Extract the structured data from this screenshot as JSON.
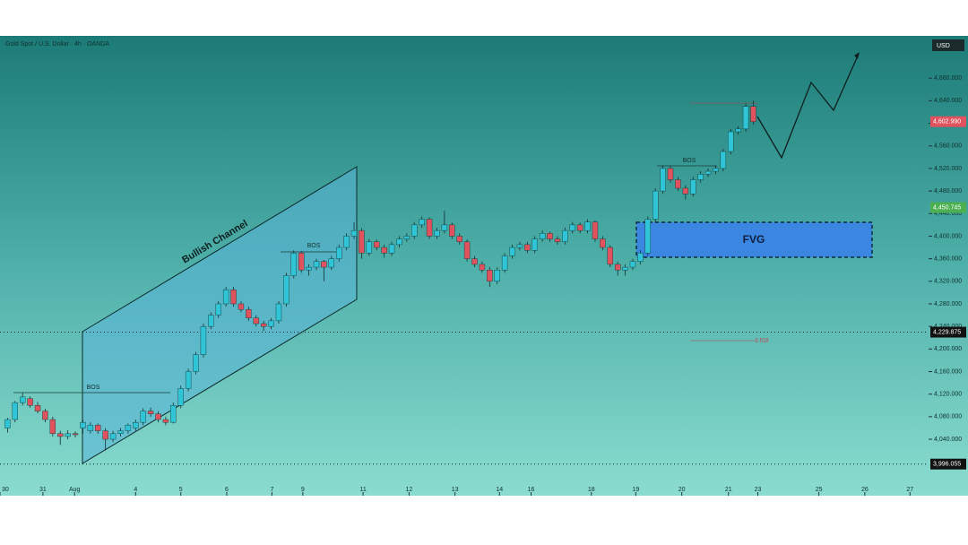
{
  "chart_data": {
    "type": "candlestick",
    "title": "Gold Spot / U.S. Dollar · 4h · OANDA",
    "currency": "USD",
    "up_color": "#2fc4d6",
    "down_color": "#e0525e",
    "candles": [
      [
        4060,
        4078,
        4052,
        4075
      ],
      [
        4075,
        4108,
        4070,
        4105
      ],
      [
        4105,
        4122,
        4100,
        4115
      ],
      [
        4112,
        4116,
        4096,
        4100
      ],
      [
        4100,
        4106,
        4086,
        4090
      ],
      [
        4090,
        4094,
        4070,
        4075
      ],
      [
        4075,
        4080,
        4045,
        4050
      ],
      [
        4050,
        4055,
        4030,
        4045
      ],
      [
        4045,
        4056,
        4040,
        4050
      ],
      [
        4050,
        4054,
        4043,
        4048
      ],
      [
        4060,
        4075,
        4050,
        4070
      ],
      [
        4055,
        4070,
        4050,
        4065
      ],
      [
        4065,
        4068,
        4050,
        4055
      ],
      [
        4055,
        4060,
        4020,
        4040
      ],
      [
        4040,
        4055,
        4035,
        4050
      ],
      [
        4050,
        4060,
        4045,
        4055
      ],
      [
        4055,
        4068,
        4050,
        4065
      ],
      [
        4060,
        4075,
        4055,
        4070
      ],
      [
        4070,
        4095,
        4065,
        4090
      ],
      [
        4090,
        4096,
        4080,
        4085
      ],
      [
        4085,
        4090,
        4070,
        4075
      ],
      [
        4075,
        4080,
        4065,
        4070
      ],
      [
        4070,
        4105,
        4068,
        4100
      ],
      [
        4100,
        4135,
        4095,
        4130
      ],
      [
        4130,
        4165,
        4125,
        4160
      ],
      [
        4160,
        4195,
        4155,
        4190
      ],
      [
        4190,
        4245,
        4185,
        4240
      ],
      [
        4240,
        4265,
        4235,
        4260
      ],
      [
        4260,
        4285,
        4255,
        4280
      ],
      [
        4280,
        4310,
        4275,
        4305
      ],
      [
        4305,
        4310,
        4275,
        4280
      ],
      [
        4280,
        4285,
        4265,
        4270
      ],
      [
        4270,
        4275,
        4250,
        4255
      ],
      [
        4255,
        4260,
        4240,
        4245
      ],
      [
        4245,
        4250,
        4232,
        4240
      ],
      [
        4240,
        4255,
        4235,
        4250
      ],
      [
        4250,
        4285,
        4245,
        4280
      ],
      [
        4280,
        4335,
        4275,
        4330
      ],
      [
        4330,
        4375,
        4325,
        4370
      ],
      [
        4370,
        4374,
        4335,
        4340
      ],
      [
        4340,
        4350,
        4330,
        4345
      ],
      [
        4345,
        4360,
        4340,
        4355
      ],
      [
        4355,
        4358,
        4320,
        4345
      ],
      [
        4345,
        4365,
        4340,
        4360
      ],
      [
        4360,
        4385,
        4355,
        4380
      ],
      [
        4380,
        4405,
        4375,
        4400
      ],
      [
        4400,
        4425,
        4395,
        4410
      ],
      [
        4410,
        4414,
        4360,
        4370
      ],
      [
        4370,
        4395,
        4365,
        4390
      ],
      [
        4390,
        4394,
        4375,
        4380
      ],
      [
        4380,
        4385,
        4362,
        4370
      ],
      [
        4370,
        4390,
        4365,
        4385
      ],
      [
        4385,
        4400,
        4380,
        4395
      ],
      [
        4395,
        4405,
        4390,
        4400
      ],
      [
        4400,
        4425,
        4395,
        4420
      ],
      [
        4420,
        4435,
        4415,
        4430
      ],
      [
        4430,
        4433,
        4395,
        4400
      ],
      [
        4400,
        4415,
        4395,
        4410
      ],
      [
        4410,
        4445,
        4405,
        4420
      ],
      [
        4420,
        4424,
        4395,
        4400
      ],
      [
        4400,
        4405,
        4385,
        4390
      ],
      [
        4390,
        4394,
        4355,
        4360
      ],
      [
        4360,
        4365,
        4345,
        4350
      ],
      [
        4350,
        4355,
        4335,
        4340
      ],
      [
        4340,
        4345,
        4310,
        4320
      ],
      [
        4320,
        4345,
        4315,
        4340
      ],
      [
        4340,
        4370,
        4335,
        4365
      ],
      [
        4365,
        4385,
        4360,
        4380
      ],
      [
        4380,
        4390,
        4375,
        4385
      ],
      [
        4385,
        4390,
        4370,
        4375
      ],
      [
        4375,
        4400,
        4370,
        4395
      ],
      [
        4395,
        4410,
        4390,
        4405
      ],
      [
        4405,
        4408,
        4390,
        4395
      ],
      [
        4395,
        4400,
        4385,
        4390
      ],
      [
        4390,
        4415,
        4385,
        4410
      ],
      [
        4410,
        4425,
        4405,
        4420
      ],
      [
        4420,
        4424,
        4405,
        4410
      ],
      [
        4410,
        4430,
        4405,
        4425
      ],
      [
        4425,
        4428,
        4390,
        4395
      ],
      [
        4395,
        4400,
        4375,
        4380
      ],
      [
        4380,
        4384,
        4345,
        4350
      ],
      [
        4350,
        4355,
        4330,
        4340
      ],
      [
        4340,
        4350,
        4330,
        4345
      ],
      [
        4345,
        4360,
        4340,
        4355
      ],
      [
        4355,
        4375,
        4350,
        4370
      ],
      [
        4370,
        4435,
        4365,
        4430
      ],
      [
        4430,
        4485,
        4425,
        4480
      ],
      [
        4480,
        4525,
        4475,
        4520
      ],
      [
        4520,
        4524,
        4495,
        4500
      ],
      [
        4500,
        4505,
        4480,
        4485
      ],
      [
        4485,
        4490,
        4465,
        4475
      ],
      [
        4475,
        4505,
        4470,
        4500
      ],
      [
        4500,
        4515,
        4495,
        4510
      ],
      [
        4510,
        4520,
        4505,
        4515
      ],
      [
        4515,
        4525,
        4510,
        4520
      ],
      [
        4520,
        4555,
        4515,
        4550
      ],
      [
        4550,
        4590,
        4545,
        4585
      ],
      [
        4585,
        4595,
        4580,
        4590
      ],
      [
        4590,
        4635,
        4585,
        4630
      ],
      [
        4630,
        4640,
        4598,
        4603
      ]
    ],
    "xlim": [
      0,
      128.5
    ],
    "xticks": [
      {
        "value": 0,
        "label": "30"
      },
      {
        "value": 5.7,
        "label": "31"
      },
      {
        "value": 9.9,
        "label": "Aug"
      },
      {
        "value": 18,
        "label": "4"
      },
      {
        "value": 24,
        "label": "5"
      },
      {
        "value": 30.1,
        "label": "6"
      },
      {
        "value": 36.1,
        "label": "7"
      },
      {
        "value": 40.2,
        "label": "9"
      },
      {
        "value": 48.2,
        "label": "11"
      },
      {
        "value": 54.3,
        "label": "12"
      },
      {
        "value": 60.4,
        "label": "13"
      },
      {
        "value": 66.3,
        "label": "14"
      },
      {
        "value": 70.5,
        "label": "16"
      },
      {
        "value": 78.5,
        "label": "18"
      },
      {
        "value": 84.4,
        "label": "19"
      },
      {
        "value": 90.5,
        "label": "20"
      },
      {
        "value": 96.7,
        "label": "21"
      },
      {
        "value": 100.6,
        "label": "23"
      },
      {
        "value": 108.7,
        "label": "25"
      },
      {
        "value": 114.8,
        "label": "26"
      },
      {
        "value": 120.8,
        "label": "27"
      }
    ],
    "ylim": [
      3940,
      4755
    ],
    "yticks": [
      {
        "value": 4040,
        "label": "4,040.000"
      },
      {
        "value": 4080,
        "label": "4,080.000"
      },
      {
        "value": 4120,
        "label": "4,120.000"
      },
      {
        "value": 4160,
        "label": "4,160.000"
      },
      {
        "value": 4200,
        "label": "4,200.000"
      },
      {
        "value": 4240,
        "label": "4,240.000"
      },
      {
        "value": 4280,
        "label": "4,280.000"
      },
      {
        "value": 4320,
        "label": "4,320.000"
      },
      {
        "value": 4360,
        "label": "4,360.000"
      },
      {
        "value": 4400,
        "label": "4,400.000"
      },
      {
        "value": 4440,
        "label": "4,440.000"
      },
      {
        "value": 4480,
        "label": "4,480.000"
      },
      {
        "value": 4520,
        "label": "4,520.000"
      },
      {
        "value": 4560,
        "label": "4,560.000"
      },
      {
        "value": 4600,
        "label": "4,600.000"
      },
      {
        "value": 4640,
        "label": "4,640.000"
      },
      {
        "value": 4680,
        "label": "4,680.000"
      }
    ],
    "levels": [
      {
        "value": 4229.875,
        "label": "4,229.875"
      },
      {
        "value": 3996.055,
        "label": "3,996.055"
      }
    ],
    "price_labels": [
      {
        "value": 4602.99,
        "label": "4,602.990",
        "color": "#e0525e"
      },
      {
        "value": 4450.745,
        "label": "4,450.745",
        "color": "#4caf50"
      }
    ],
    "annotations": {
      "channel": "Bullish Channel",
      "bos": [
        "BOS",
        "BOS",
        "BOS"
      ],
      "fvg": "FVG",
      "fib": "2.618"
    }
  }
}
